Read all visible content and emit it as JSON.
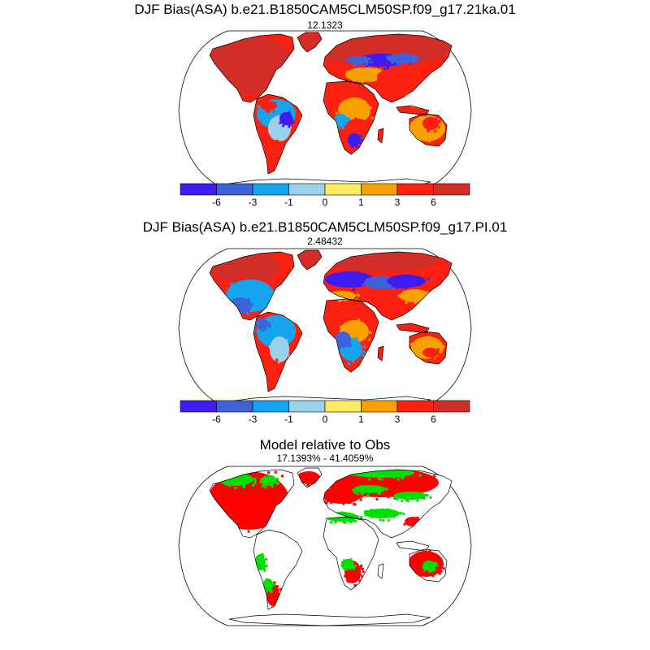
{
  "chart_data": [
    {
      "type": "heatmap",
      "projection": "Robinson",
      "title": "DJF Bias(ASA) b.e21.B1850CAM5CLM50SP.f09_g17.21ka.01",
      "subtitle": "12.1323",
      "colorbar": {
        "levels": [
          -6,
          -3,
          -1,
          0,
          1,
          3,
          6
        ],
        "tick_labels": [
          "-6",
          "-3",
          "-1",
          "0",
          "1",
          "3",
          "6"
        ],
        "colors": [
          "#3f1bf2",
          "#3e62da",
          "#14a4f0",
          "#9bd1ea",
          "#fdec5d",
          "#f8a100",
          "#fc2011",
          "#d12d29"
        ]
      },
      "dominant_values": "mostly positive bias (red) over land; negative bias (blue) over central Eurasia and parts of South America"
    },
    {
      "type": "heatmap",
      "projection": "Robinson",
      "title": "DJF Bias(ASA) b.e21.B1850CAM5CLM50SP.f09_g17.PI.01",
      "subtitle": "2.48432",
      "colorbar": {
        "levels": [
          -6,
          -3,
          -1,
          0,
          1,
          3,
          6
        ],
        "tick_labels": [
          "-6",
          "-3",
          "-1",
          "0",
          "1",
          "3",
          "6"
        ],
        "colors": [
          "#3f1bf2",
          "#3e62da",
          "#14a4f0",
          "#9bd1ea",
          "#fdec5d",
          "#f8a100",
          "#fc2011",
          "#d12d29"
        ]
      },
      "dominant_values": "positive bias (red) over northern high latitudes; negative bias (blue) over Europe, central Asia, eastern North America and South America"
    },
    {
      "type": "heatmap",
      "projection": "Robinson",
      "title": "Model relative to Obs",
      "subtitle": "17.1393% - 41.4059%",
      "colors": {
        "model_higher": "#ff0000",
        "model_lower": "#00e000"
      },
      "dominant_values": "red over most of North America, Europe, Siberia and Australia; green scattered across Eurasia, Africa and South America"
    }
  ]
}
